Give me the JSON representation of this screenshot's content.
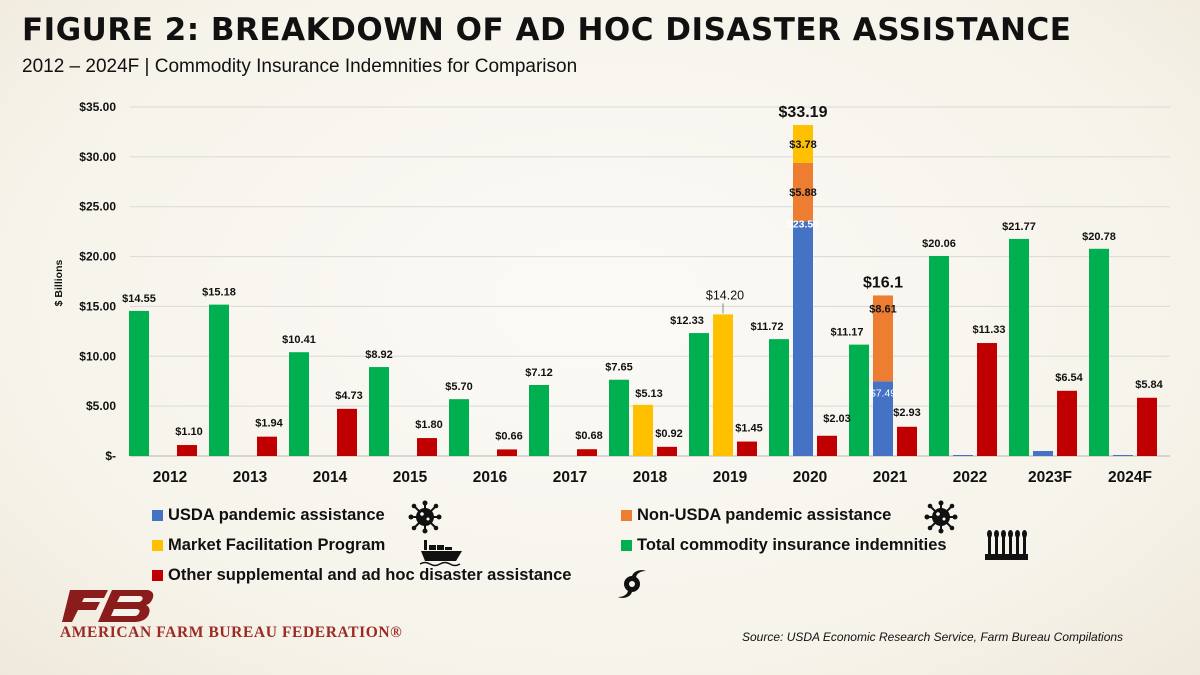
{
  "header": {
    "title": "FIGURE 2: BREAKDOWN OF AD HOC DISASTER ASSISTANCE",
    "subtitle": "2012 – 2024F | Commodity Insurance Indemnities for Comparison"
  },
  "footer": {
    "org_name": "AMERICAN FARM BUREAU FEDERATION®",
    "source": "Source: USDA Economic Research Service, Farm Bureau Compilations"
  },
  "colors": {
    "usda": "#4472C4",
    "non_usda": "#ED7D31",
    "mfp": "#FFC000",
    "insurance": "#00B050",
    "other": "#C00000",
    "brand_red": "#9c2a22"
  },
  "legend": [
    {
      "key": "usda",
      "label": "USDA pandemic assistance",
      "icon": "virus-icon"
    },
    {
      "key": "non_usda",
      "label": "Non-USDA pandemic assistance",
      "icon": "virus-icon"
    },
    {
      "key": "mfp",
      "label": "Market Facilitation Program",
      "icon": "cargo-ship-icon"
    },
    {
      "key": "insurance",
      "label": "Total commodity insurance indemnities",
      "icon": "wheat-crop-icon"
    },
    {
      "key": "other",
      "label": "Other supplemental and ad hoc disaster assistance",
      "icon": "hurricane-icon"
    }
  ],
  "chart_data": {
    "type": "bar",
    "title": "FIGURE 2: BREAKDOWN OF AD HOC DISASTER ASSISTANCE",
    "subtitle": "2012 – 2024F | Commodity Insurance Indemnities for Comparison",
    "ylabel": "$ Billions",
    "ylim": [
      0,
      35
    ],
    "yticks": [
      "$-",
      "$5.00",
      "$10.00",
      "$15.00",
      "$20.00",
      "$25.00",
      "$30.00",
      "$35.00"
    ],
    "grid": true,
    "legend_position": "bottom",
    "categories": [
      "2012",
      "2013",
      "2014",
      "2015",
      "2016",
      "2017",
      "2018",
      "2019",
      "2020",
      "2021",
      "2022",
      "2023F",
      "2024F"
    ],
    "series": [
      {
        "name": "Total commodity insurance indemnities",
        "key": "insurance",
        "values": [
          14.55,
          15.18,
          10.41,
          8.92,
          5.7,
          7.12,
          7.65,
          12.33,
          11.72,
          11.17,
          20.06,
          21.77,
          20.78
        ],
        "labels": [
          "$14.55",
          "$15.18",
          "$10.41",
          "$8.92",
          "$5.70",
          "$7.12",
          "$7.65",
          "$12.33",
          "$11.72",
          "$11.17",
          "$20.06",
          "$21.77",
          "$20.78"
        ]
      },
      {
        "name": "USDA pandemic assistance",
        "key": "usda",
        "stack": "assist",
        "values": [
          0,
          0,
          0,
          0,
          0,
          0,
          0,
          0,
          23.53,
          7.49,
          0.1,
          0.5,
          0.1
        ],
        "labels": [
          null,
          null,
          null,
          null,
          null,
          null,
          null,
          null,
          "$23.53",
          "$7.49",
          null,
          null,
          null
        ]
      },
      {
        "name": "Non-USDA pandemic assistance",
        "key": "non_usda",
        "stack": "assist",
        "values": [
          0,
          0,
          0,
          0,
          0,
          0,
          0,
          0,
          5.88,
          8.61,
          0,
          0,
          0
        ],
        "labels": [
          null,
          null,
          null,
          null,
          null,
          null,
          null,
          null,
          "$5.88",
          "$8.61",
          null,
          null,
          null
        ]
      },
      {
        "name": "Market Facilitation Program",
        "key": "mfp",
        "stack": "assist",
        "values": [
          0,
          0,
          0,
          0,
          0,
          0,
          5.13,
          14.2,
          3.78,
          0,
          0,
          0,
          0
        ],
        "labels": [
          null,
          null,
          null,
          null,
          null,
          null,
          "$5.13",
          "$14.20",
          "$3.78",
          null,
          null,
          null,
          null
        ]
      },
      {
        "name": "Other supplemental and ad hoc disaster assistance",
        "key": "other",
        "values": [
          1.1,
          1.94,
          4.73,
          1.8,
          0.66,
          0.68,
          0.92,
          1.45,
          2.03,
          2.93,
          11.33,
          6.54,
          5.84
        ],
        "labels": [
          "$1.10",
          "$1.94",
          "$4.73",
          "$1.80",
          "$0.66",
          "$0.68",
          "$0.92",
          "$1.45",
          "$2.03",
          "$2.93",
          "$11.33",
          "$6.54",
          "$5.84"
        ]
      }
    ],
    "stack_totals": [
      {
        "category": "2020",
        "label": "$33.19",
        "value": 33.19
      },
      {
        "category": "2021",
        "label": "$16.1",
        "value": 16.1
      }
    ]
  }
}
